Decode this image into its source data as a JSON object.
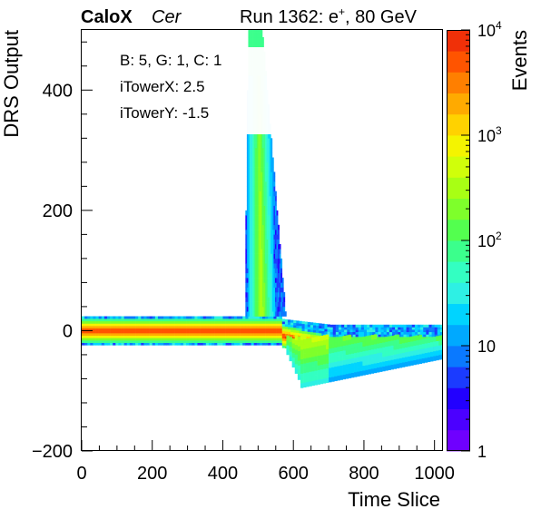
{
  "header": {
    "experiment": "CaloX",
    "channel": "Cer",
    "run_info": "Run 1362: e",
    "run_superscript": "+",
    "run_suffix": ", 80 GeV"
  },
  "info_box": {
    "line1": "B: 5, G: 1, C: 1",
    "line2": "iTowerX: 2.5",
    "line3": "iTowerY: -1.5"
  },
  "chart_data": {
    "type": "heatmap",
    "title": "",
    "xlabel": "Time Slice",
    "ylabel": "DRS Output",
    "zlabel": "Events",
    "xlim": [
      0,
      1024
    ],
    "ylim": [
      -200,
      500
    ],
    "zlim": [
      1,
      10000
    ],
    "z_scale": "log",
    "x_ticks": [
      0,
      200,
      400,
      600,
      800,
      1000
    ],
    "y_ticks": [
      -200,
      0,
      200,
      400
    ],
    "z_ticks": [
      "1",
      "10",
      "10^2",
      "10^3",
      "10^4"
    ],
    "grid": false,
    "features": [
      {
        "name": "pedestal",
        "x": [
          0,
          1024
        ],
        "y": [
          -5,
          5
        ],
        "z_peak": 10000
      },
      {
        "name": "pulse",
        "x_start": 460,
        "x_peak": 495,
        "x_end": 580,
        "y_max": 500
      },
      {
        "name": "undershoot",
        "x": [
          580,
          1024
        ],
        "y_min": -95
      }
    ],
    "colors": {
      "palette": [
        "#6f00ff",
        "#4b00ff",
        "#2200ff",
        "#1b3bff",
        "#0a79ff",
        "#00a9ff",
        "#00d4ff",
        "#2ef0e4",
        "#33ffc2",
        "#3bff8c",
        "#53ff4f",
        "#7eff2b",
        "#a8ff14",
        "#d0ff0a",
        "#f4f400",
        "#ffd200",
        "#ffaa00",
        "#ff7f00",
        "#ff5400",
        "#f03008"
      ]
    }
  }
}
